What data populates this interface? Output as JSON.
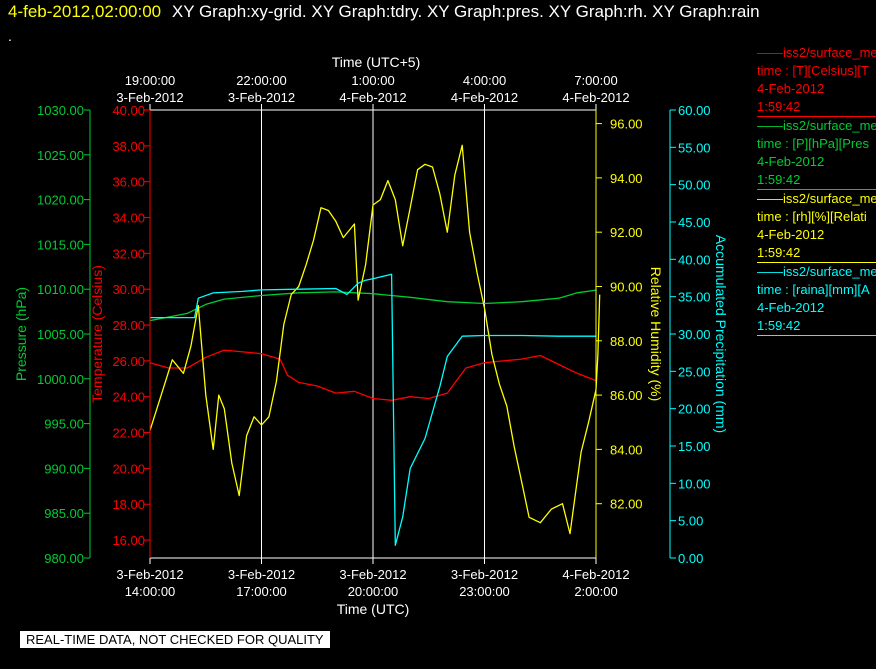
{
  "header": {
    "date": "4-feb-2012,02:00:00",
    "graphs": "XY Graph:xy-grid.  XY Graph:tdry.  XY Graph:pres.  XY Graph:rh.  XY Graph:rain",
    "dot": "."
  },
  "legend": [
    {
      "line1": "iss2/surface_me",
      "line2": "time : [T][Celsius][T",
      "date": "4-Feb-2012",
      "time": "1:59:42",
      "color": "#ff0000"
    },
    {
      "line1": "iss2/surface_me",
      "line2": "time : [P][hPa][Pres",
      "date": "4-Feb-2012",
      "time": "1:59:42",
      "color": "#00cc33"
    },
    {
      "line1": "iss2/surface_me",
      "line2": "time : [rh][%][Relati",
      "date": "4-Feb-2012",
      "time": "1:59:42",
      "color": "#ffff00"
    },
    {
      "line1": "iss2/surface_me",
      "line2": "time : [raina][mm][A",
      "date": "4-Feb-2012",
      "time": "1:59:42",
      "color": "#00ffff"
    }
  ],
  "notice": "REAL-TIME DATA, NOT CHECKED FOR QUALITY",
  "chart_data": {
    "type": "line",
    "x_unit": "hours after 3-Feb-2012 14:00 UTC",
    "x_range": [
      0,
      12
    ],
    "bottom_axis": {
      "title": "Time (UTC)",
      "ticks": [
        {
          "x": 0,
          "date": "3-Feb-2012",
          "time": "14:00:00"
        },
        {
          "x": 3,
          "date": "3-Feb-2012",
          "time": "17:00:00"
        },
        {
          "x": 6,
          "date": "3-Feb-2012",
          "time": "20:00:00"
        },
        {
          "x": 9,
          "date": "3-Feb-2012",
          "time": "23:00:00"
        },
        {
          "x": 12,
          "date": "4-Feb-2012",
          "time": "2:00:00"
        }
      ]
    },
    "top_axis": {
      "title": "Time (UTC+5)",
      "ticks": [
        {
          "x": 0,
          "time": "19:00:00",
          "date": "3-Feb-2012"
        },
        {
          "x": 3,
          "time": "22:00:00",
          "date": "3-Feb-2012"
        },
        {
          "x": 6,
          "time": "1:00:00",
          "date": "4-Feb-2012"
        },
        {
          "x": 9,
          "time": "4:00:00",
          "date": "4-Feb-2012"
        },
        {
          "x": 12,
          "time": "7:00:00",
          "date": "4-Feb-2012"
        }
      ]
    },
    "grid": "vertical lines at every time tick",
    "y_axes": [
      {
        "id": "pres",
        "label": "Pressure (hPa)",
        "color": "#00cc33",
        "range": [
          980,
          1030
        ],
        "ticks": [
          "980.00",
          "985.00",
          "990.00",
          "995.00",
          "1000.00",
          "1005.00",
          "1010.00",
          "1015.00",
          "1020.00",
          "1025.00",
          "1030.00"
        ]
      },
      {
        "id": "temp",
        "label": "Temperature (Celsius)",
        "color": "#ff0000",
        "range": [
          15,
          40
        ],
        "ticks": [
          "16.00",
          "18.00",
          "20.00",
          "22.00",
          "24.00",
          "26.00",
          "28.00",
          "30.00",
          "32.00",
          "34.00",
          "36.00",
          "38.00",
          "40.00"
        ]
      },
      {
        "id": "rh",
        "label": "Relative Humidity (%)",
        "color": "#ffff00",
        "range": [
          80,
          96.5
        ],
        "ticks": [
          "82.00",
          "84.00",
          "86.00",
          "88.00",
          "90.00",
          "92.00",
          "94.00",
          "96.00"
        ]
      },
      {
        "id": "rain",
        "label": "Accumulated Precipitation (mm)",
        "color": "#00ffff",
        "range": [
          0,
          60
        ],
        "ticks": [
          "0.00",
          "5.00",
          "10.00",
          "15.00",
          "20.00",
          "25.00",
          "30.00",
          "35.00",
          "40.00",
          "45.00",
          "50.00",
          "55.00",
          "60.00"
        ]
      }
    ],
    "series": [
      {
        "axis": "temp",
        "color": "#ff0000",
        "points": [
          [
            0,
            25.9
          ],
          [
            0.5,
            25.6
          ],
          [
            1,
            25.6
          ],
          [
            1.5,
            26.2
          ],
          [
            2,
            26.6
          ],
          [
            2.5,
            26.5
          ],
          [
            3,
            26.4
          ],
          [
            3.5,
            26.1
          ],
          [
            3.7,
            25.2
          ],
          [
            4,
            24.8
          ],
          [
            4.5,
            24.6
          ],
          [
            5,
            24.2
          ],
          [
            5.5,
            24.3
          ],
          [
            6,
            23.9
          ],
          [
            6.5,
            23.8
          ],
          [
            7,
            24.0
          ],
          [
            7.5,
            23.9
          ],
          [
            8,
            24.2
          ],
          [
            8.5,
            25.6
          ],
          [
            9,
            25.9
          ],
          [
            9.5,
            26.0
          ],
          [
            10,
            26.1
          ],
          [
            10.5,
            26.3
          ],
          [
            11,
            25.8
          ],
          [
            11.5,
            25.3
          ],
          [
            12,
            24.9
          ]
        ]
      },
      {
        "axis": "pres",
        "color": "#00cc33",
        "points": [
          [
            0,
            1006.5
          ],
          [
            1,
            1007.3
          ],
          [
            1.5,
            1008.3
          ],
          [
            2,
            1008.9
          ],
          [
            3,
            1009.3
          ],
          [
            4,
            1009.6
          ],
          [
            5,
            1009.7
          ],
          [
            6,
            1009.5
          ],
          [
            7,
            1009.1
          ],
          [
            8,
            1008.6
          ],
          [
            9,
            1008.4
          ],
          [
            10,
            1008.6
          ],
          [
            11,
            1009.0
          ],
          [
            11.5,
            1009.6
          ],
          [
            12,
            1009.9
          ]
        ]
      },
      {
        "axis": "rh",
        "color": "#ffff00",
        "points": [
          [
            0,
            84.7
          ],
          [
            0.3,
            86
          ],
          [
            0.6,
            87.3
          ],
          [
            0.9,
            86.8
          ],
          [
            1.1,
            87.8
          ],
          [
            1.3,
            89.3
          ],
          [
            1.5,
            86
          ],
          [
            1.7,
            84
          ],
          [
            1.85,
            86
          ],
          [
            2,
            85.5
          ],
          [
            2.2,
            83.5
          ],
          [
            2.4,
            82.3
          ],
          [
            2.6,
            84.5
          ],
          [
            2.8,
            85.2
          ],
          [
            3,
            84.9
          ],
          [
            3.2,
            85.2
          ],
          [
            3.4,
            86.5
          ],
          [
            3.6,
            88.6
          ],
          [
            3.8,
            89.7
          ],
          [
            4,
            90
          ],
          [
            4.2,
            90.8
          ],
          [
            4.4,
            91.7
          ],
          [
            4.6,
            92.9
          ],
          [
            4.8,
            92.8
          ],
          [
            5,
            92.4
          ],
          [
            5.2,
            91.8
          ],
          [
            5.5,
            92.3
          ],
          [
            5.6,
            89.5
          ],
          [
            5.8,
            90.8
          ],
          [
            6,
            93
          ],
          [
            6.2,
            93.2
          ],
          [
            6.4,
            93.9
          ],
          [
            6.6,
            93.2
          ],
          [
            6.8,
            91.5
          ],
          [
            7,
            92.9
          ],
          [
            7.2,
            94.3
          ],
          [
            7.4,
            94.5
          ],
          [
            7.6,
            94.4
          ],
          [
            7.8,
            93.4
          ],
          [
            8,
            92
          ],
          [
            8.2,
            94.1
          ],
          [
            8.4,
            95.2
          ],
          [
            8.6,
            92
          ],
          [
            8.8,
            90.5
          ],
          [
            9,
            89.2
          ],
          [
            9.2,
            87.5
          ],
          [
            9.4,
            86.4
          ],
          [
            9.6,
            85.6
          ],
          [
            9.8,
            84.1
          ],
          [
            10,
            82.8
          ],
          [
            10.2,
            81.5
          ],
          [
            10.5,
            81.3
          ],
          [
            10.8,
            81.8
          ],
          [
            11.1,
            82
          ],
          [
            11.3,
            80.9
          ],
          [
            11.6,
            83.9
          ],
          [
            11.8,
            85
          ],
          [
            12,
            86.2
          ],
          [
            12.05,
            87.5
          ],
          [
            12.1,
            89.7
          ]
        ]
      },
      {
        "axis": "rain",
        "color": "#00ffff",
        "points": [
          [
            0,
            32.2
          ],
          [
            1.2,
            32.2
          ],
          [
            1.3,
            34.8
          ],
          [
            1.7,
            35.5
          ],
          [
            2.5,
            35.7
          ],
          [
            3,
            35.9
          ],
          [
            4,
            36.0
          ],
          [
            5,
            36.1
          ],
          [
            5.3,
            35.3
          ],
          [
            5.6,
            36.8
          ],
          [
            5.8,
            37.2
          ],
          [
            6,
            37.4
          ],
          [
            6.5,
            38.0
          ],
          [
            6.6,
            1.7
          ],
          [
            6.8,
            5.5
          ],
          [
            7,
            12
          ],
          [
            7.4,
            16
          ],
          [
            7.8,
            23
          ],
          [
            8,
            27
          ],
          [
            8.4,
            29.7
          ],
          [
            9,
            29.8
          ],
          [
            10,
            29.8
          ],
          [
            11,
            29.7
          ],
          [
            12,
            29.7
          ]
        ]
      }
    ]
  }
}
